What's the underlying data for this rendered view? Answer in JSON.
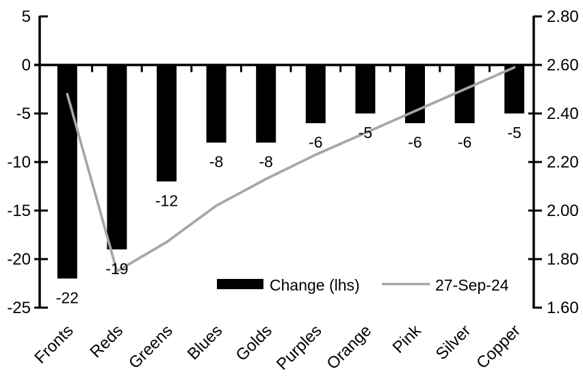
{
  "colors": {
    "background": "#ffffff",
    "bar": "#000000",
    "line": "#a6a6a6",
    "axis": "#000000",
    "text": "#000000"
  },
  "chart_data": {
    "type": "bar",
    "subtype": "combo-bar-line-dual-axis",
    "title": "",
    "grid": false,
    "categories": [
      "Fronts",
      "Reds",
      "Greens",
      "Blues",
      "Golds",
      "Purples",
      "Orange",
      "Pink",
      "Silver",
      "Copper"
    ],
    "series": [
      {
        "name": "Change (lhs)",
        "type": "bar",
        "axis": "left",
        "color": "#000000",
        "values": [
          -22,
          -19,
          -12,
          -8,
          -8,
          -6,
          -5,
          -6,
          -6,
          -5
        ],
        "data_labels": [
          "-22",
          "-19",
          "-12",
          "-8",
          "-8",
          "-6",
          "-5",
          "-6",
          "-6",
          "-5"
        ]
      },
      {
        "name": "27-Sep-24",
        "type": "line",
        "axis": "right",
        "color": "#a6a6a6",
        "values": [
          2.48,
          1.75,
          1.87,
          2.02,
          2.13,
          2.23,
          2.32,
          2.41,
          2.5,
          2.59
        ]
      }
    ],
    "left_axis": {
      "min": -25,
      "max": 5,
      "tick_interval": 5,
      "tick_labels": [
        "5",
        "0",
        "-5",
        "-10",
        "-15",
        "-20",
        "-25"
      ]
    },
    "right_axis": {
      "min": 1.6,
      "max": 2.8,
      "tick_interval": 0.2,
      "tick_labels": [
        "2.80",
        "2.60",
        "2.40",
        "2.20",
        "2.00",
        "1.80",
        "1.60"
      ]
    },
    "legend": {
      "position": "inside-bottom-center",
      "entries": [
        {
          "label": "Change (lhs)",
          "swatch": "bar",
          "color": "#000000"
        },
        {
          "label": "27-Sep-24",
          "swatch": "line",
          "color": "#a6a6a6"
        }
      ]
    }
  }
}
